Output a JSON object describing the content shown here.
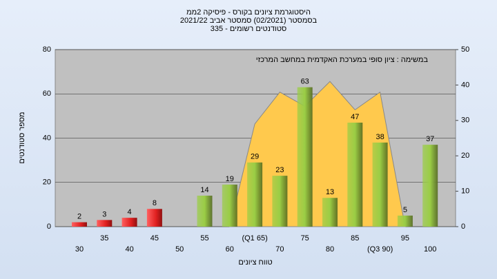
{
  "chart_data": {
    "type": "bar",
    "title": "היסטוגרמת ציונים בקורס - פיסיקה 2ממ",
    "subtitle": "בסמסטר  (02/2021)  סמסטר אביב 2021/22",
    "subtitle2": "סטודנטים רשומים - 335",
    "annotation": "במשימה : ציון סופי במערכת האקדמית במחשב המרכזי",
    "y_label": "מספר סטודנטים",
    "x_label": "טווח ציונים",
    "categories": [
      "30",
      "35",
      "40",
      "45",
      "50",
      "55",
      "60",
      "(Q1 65)",
      "70",
      "75",
      "80",
      "85",
      "(Q3 90)",
      "95",
      "100"
    ],
    "series": [
      {
        "color": "#e02020",
        "values": [
          2,
          3,
          4,
          8,
          null,
          null,
          null,
          null,
          null,
          null,
          null,
          null,
          null,
          null,
          null
        ]
      },
      {
        "color": "#9acd45",
        "values": [
          null,
          null,
          null,
          null,
          null,
          14,
          19,
          29,
          23,
          63,
          13,
          47,
          38,
          5,
          37
        ]
      },
      {
        "color": "#ffc94d",
        "axis": "y2",
        "values": [
          null,
          null,
          null,
          null,
          null,
          null,
          0,
          29,
          38,
          34,
          41,
          33,
          38,
          0,
          null
        ]
      }
    ],
    "ylim": [
      0,
      80
    ],
    "yticks": [
      0,
      20,
      40,
      60,
      80
    ],
    "y2lim": [
      0,
      50
    ],
    "y2ticks": [
      0,
      10,
      20,
      30,
      40,
      50
    ],
    "grid": true
  }
}
